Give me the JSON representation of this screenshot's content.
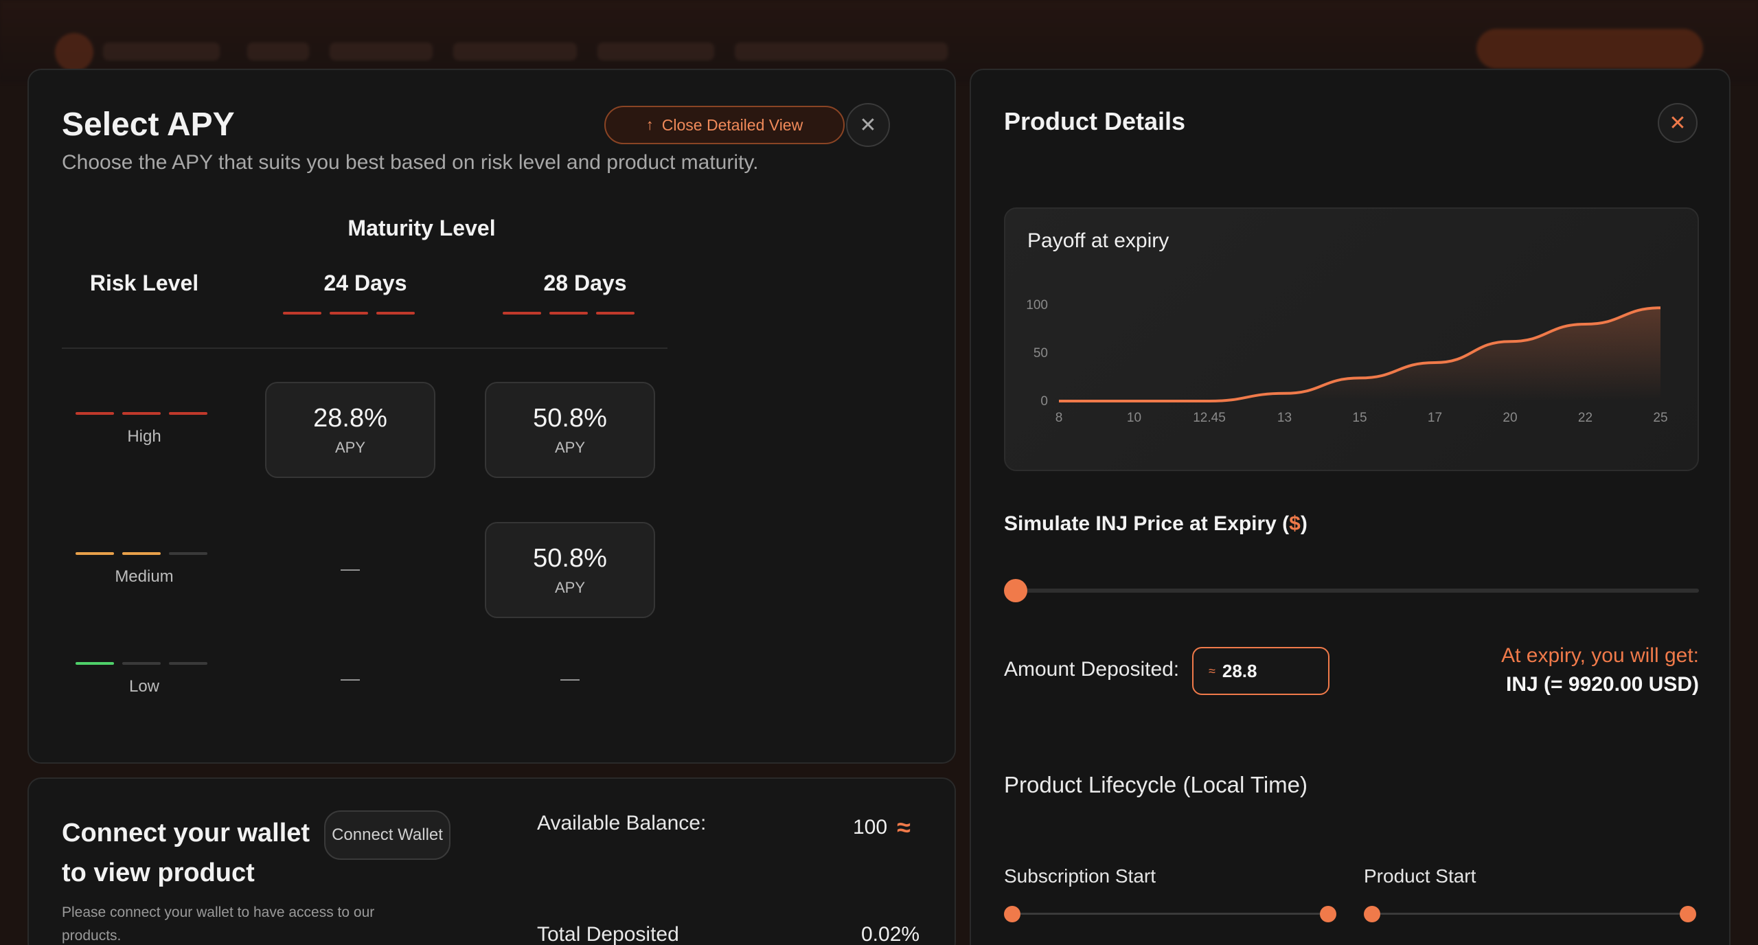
{
  "apy": {
    "title": "Select APY",
    "subtitle": "Choose the APY that suits you best based on risk level and product maturity.",
    "close_detailed_label": "Close Detailed View",
    "close_detailed_icon": "arrow-up-icon",
    "close_icon": "close-icon",
    "maturity_label": "Maturity Level",
    "risk_label": "Risk Level",
    "columns": [
      {
        "label": "24 Days"
      },
      {
        "label": "28 Days"
      }
    ],
    "rows": [
      {
        "risk": "High",
        "level": 3,
        "color": "#c0392b",
        "cells": [
          {
            "value": "28.8%",
            "unit": "APY"
          },
          {
            "value": "50.8%",
            "unit": "APY"
          }
        ]
      },
      {
        "risk": "Medium",
        "level": 2,
        "color": "#e8a04a",
        "cells": [
          {
            "empty": "—"
          },
          {
            "value": "50.8%",
            "unit": "APY"
          }
        ]
      },
      {
        "risk": "Low",
        "level": 1,
        "color": "#4fd06a",
        "cells": [
          {
            "empty": "—"
          },
          {
            "empty": "—"
          }
        ]
      }
    ]
  },
  "wallet": {
    "title": "Connect your wallet to view product",
    "connect_label": "Connect Wallet",
    "hint": "Please connect your wallet to have access to our products.",
    "balance_label": "Available Balance:",
    "balance_value": "100",
    "deposited_label": "Total Deposited",
    "deposited_value": "0.02%",
    "token_icon": "injective-icon"
  },
  "details": {
    "title": "Product Details",
    "close_icon": "close-icon",
    "chart_title": "Payoff at expiry",
    "simulate_label": "Simulate INJ Price at Expiry (",
    "simulate_currency": "$",
    "simulate_suffix": ")",
    "slider_value": 0,
    "amount_label": "Amount Deposited:",
    "amount_value": "28.8",
    "expiry_label": "At expiry, you will get:",
    "expiry_value": "INJ (= 9920.00 USD)",
    "lifecycle_title": "Product Lifecycle (Local Time)",
    "lifecycle": [
      {
        "label": "Subscription Start"
      },
      {
        "label": "Product Start"
      }
    ]
  },
  "chart_data": {
    "type": "area",
    "title": "Payoff at expiry",
    "x_ticks": [
      "8",
      "10",
      "12.45",
      "13",
      "15",
      "17",
      "20",
      "22",
      "25"
    ],
    "y_ticks": [
      0,
      50,
      100
    ],
    "ylim": [
      0,
      100
    ],
    "values": [
      0,
      0,
      0,
      8,
      24,
      40,
      62,
      80,
      97
    ],
    "color": "#f07a4a",
    "grid": false
  }
}
